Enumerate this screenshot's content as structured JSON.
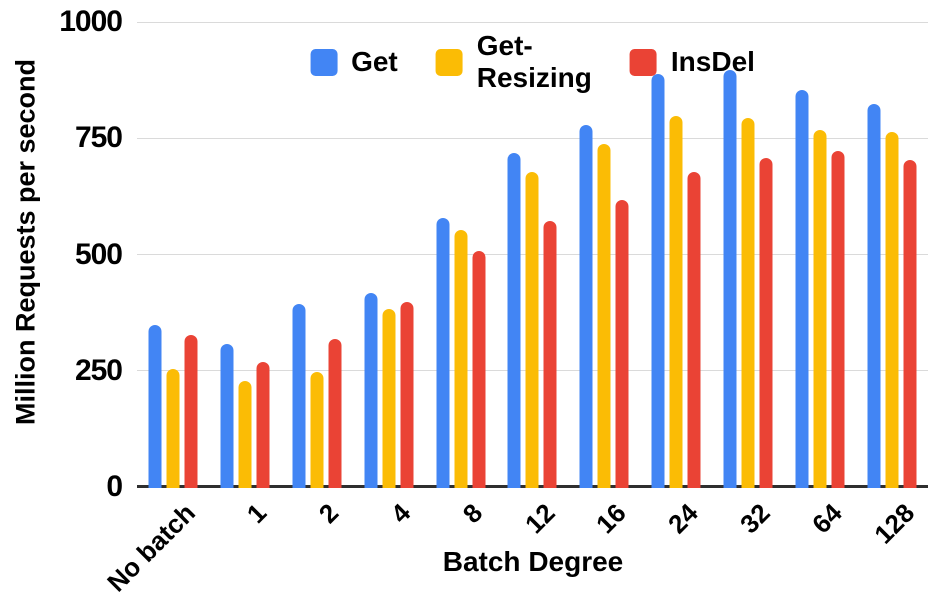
{
  "chart_data": {
    "type": "bar",
    "title": "",
    "xlabel": "Batch Degree",
    "ylabel": "Million Requests per second",
    "categories": [
      "No batch",
      "1",
      "2",
      "4",
      "8",
      "12",
      "16",
      "24",
      "32",
      "64",
      "128"
    ],
    "series": [
      {
        "name": "Get",
        "color": "#4285F4",
        "values": [
          350,
          310,
          395,
          420,
          580,
          720,
          780,
          890,
          900,
          855,
          825
        ]
      },
      {
        "name": "Get-Resizing",
        "color": "#FBBC05",
        "values": [
          255,
          230,
          250,
          385,
          555,
          680,
          740,
          800,
          795,
          770,
          765
        ]
      },
      {
        "name": "InsDel",
        "color": "#EA4335",
        "values": [
          330,
          270,
          320,
          400,
          510,
          575,
          620,
          680,
          710,
          725,
          705
        ]
      }
    ],
    "ylim": [
      0,
      1000
    ],
    "yticks": [
      0,
      250,
      500,
      750,
      1000
    ],
    "grid": true,
    "legend_position": "top-center",
    "colors": {
      "gridline": "#dadada",
      "axis_line": "#2f2f2f",
      "text": "#000000",
      "background": "#ffffff"
    }
  }
}
